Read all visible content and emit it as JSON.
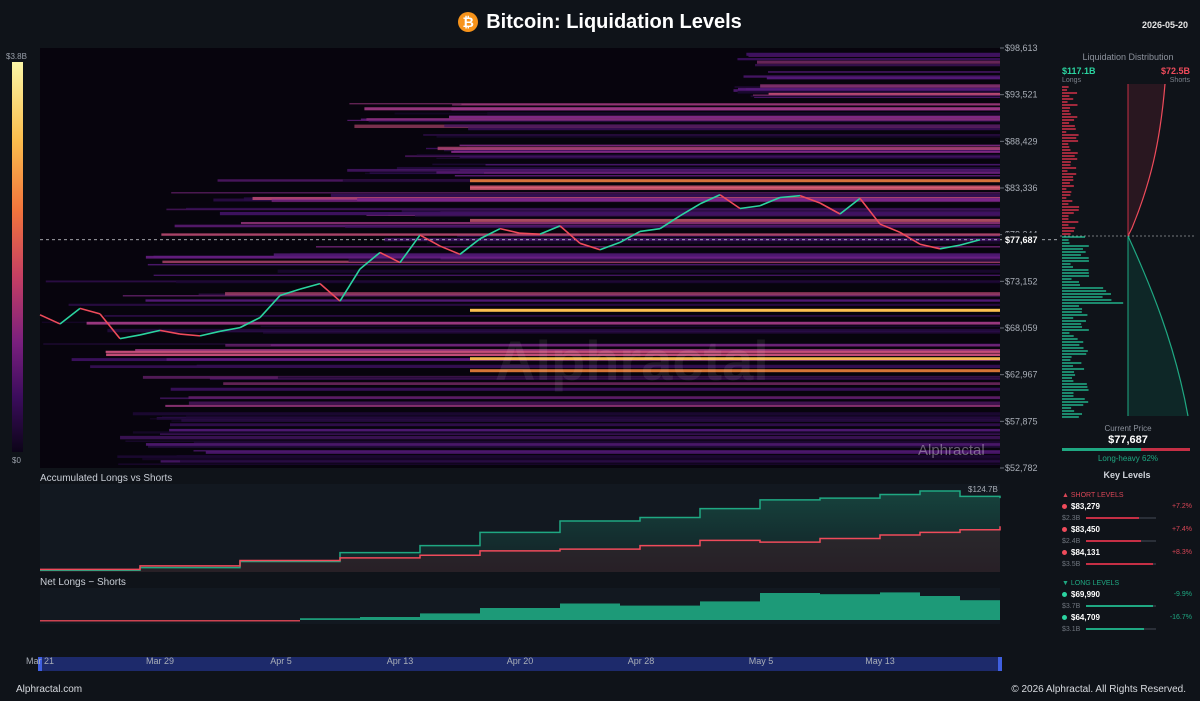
{
  "header": {
    "title": "Bitcoin: Liquidation Levels",
    "date": "2026-05-20",
    "icon": "bitcoin-icon"
  },
  "footer": {
    "left": "Alphractal.com",
    "right": "© 2026 Alphractal. All Rights Reserved."
  },
  "watermark": {
    "big": "Alphractal",
    "small": "Alphractal"
  },
  "colorbar": {
    "max_label": "$3.8B",
    "min_label": "$0"
  },
  "panels": {
    "accumulated_title": "Accumulated Longs vs Shorts",
    "net_title": "Net Longs − Shorts",
    "accumulated_value_label": "$124.7B"
  },
  "colors": {
    "long": "#1fa882",
    "short": "#ef4b5b",
    "background": "#0f1319"
  },
  "sidebar": {
    "title": "Liquidation Distribution",
    "longs_value": "$117.1B",
    "longs_label": "Longs",
    "shorts_value": "$72.5B",
    "shorts_label": "Shorts",
    "current_price_label": "Current Price",
    "current_price": "$77,687",
    "bias_label": "Long-heavy 62%",
    "long_fraction": 0.62
  },
  "key_levels": {
    "title": "Key Levels",
    "short_header": "▲ SHORT LEVELS",
    "long_header": "▼ LONG LEVELS",
    "short": [
      {
        "price": "$83,279",
        "pct": "+7.2%",
        "amount": "$2.3B",
        "strength": 0.75
      },
      {
        "price": "$83,450",
        "pct": "+7.4%",
        "amount": "$2.4B",
        "strength": 0.78
      },
      {
        "price": "$84,131",
        "pct": "+8.3%",
        "amount": "$3.5B",
        "strength": 0.95
      }
    ],
    "long": [
      {
        "price": "$69,990",
        "pct": "-9.9%",
        "amount": "$3.7B",
        "strength": 0.95
      },
      {
        "price": "$64,709",
        "pct": "-16.7%",
        "amount": "$3.1B",
        "strength": 0.82
      }
    ]
  },
  "chart_data": {
    "type": "heatmap",
    "title": "Bitcoin: Liquidation Levels",
    "y_ticks": [
      "$98,613",
      "$93,521",
      "$88,429",
      "$83,336",
      "$78,244",
      "$73,152",
      "$68,059",
      "$62,967",
      "$57,875",
      "$52,782"
    ],
    "ylim": [
      52782,
      98613
    ],
    "x_ticks": [
      "Mar 21",
      "Mar 29",
      "Apr 5",
      "Apr 13",
      "Apr 20",
      "Apr 28",
      "May 5",
      "May 13"
    ],
    "current_price": 77687,
    "current_price_label": "$77,687",
    "bright_bands": [
      {
        "price": 69990,
        "intensity": 1.0
      },
      {
        "price": 64709,
        "intensity": 0.9
      },
      {
        "price": 63400,
        "intensity": 0.75
      },
      {
        "price": 84131,
        "intensity": 0.7
      },
      {
        "price": 83450,
        "intensity": 0.6
      },
      {
        "price": 83279,
        "intensity": 0.55
      },
      {
        "price": 79800,
        "intensity": 0.5
      }
    ],
    "price_series": [
      {
        "x": 0,
        "y": 69500
      },
      {
        "x": 2,
        "y": 68500
      },
      {
        "x": 4,
        "y": 70200
      },
      {
        "x": 6,
        "y": 69600
      },
      {
        "x": 8,
        "y": 66900
      },
      {
        "x": 10,
        "y": 67300
      },
      {
        "x": 12,
        "y": 67800
      },
      {
        "x": 14,
        "y": 67400
      },
      {
        "x": 16,
        "y": 67200
      },
      {
        "x": 18,
        "y": 67700
      },
      {
        "x": 20,
        "y": 68100
      },
      {
        "x": 22,
        "y": 69200
      },
      {
        "x": 24,
        "y": 71600
      },
      {
        "x": 26,
        "y": 72300
      },
      {
        "x": 28,
        "y": 72900
      },
      {
        "x": 30,
        "y": 71000
      },
      {
        "x": 32,
        "y": 74500
      },
      {
        "x": 34,
        "y": 76300
      },
      {
        "x": 36,
        "y": 75200
      },
      {
        "x": 38,
        "y": 78200
      },
      {
        "x": 40,
        "y": 77000
      },
      {
        "x": 42,
        "y": 76100
      },
      {
        "x": 44,
        "y": 77800
      },
      {
        "x": 46,
        "y": 78900
      },
      {
        "x": 48,
        "y": 78400
      },
      {
        "x": 50,
        "y": 78300
      },
      {
        "x": 52,
        "y": 79200
      },
      {
        "x": 54,
        "y": 77300
      },
      {
        "x": 56,
        "y": 76600
      },
      {
        "x": 58,
        "y": 77400
      },
      {
        "x": 60,
        "y": 78600
      },
      {
        "x": 62,
        "y": 78900
      },
      {
        "x": 64,
        "y": 80300
      },
      {
        "x": 66,
        "y": 81600
      },
      {
        "x": 68,
        "y": 82600
      },
      {
        "x": 70,
        "y": 81100
      },
      {
        "x": 72,
        "y": 81400
      },
      {
        "x": 74,
        "y": 82300
      },
      {
        "x": 76,
        "y": 82500
      },
      {
        "x": 78,
        "y": 81700
      },
      {
        "x": 80,
        "y": 80500
      },
      {
        "x": 82,
        "y": 82200
      },
      {
        "x": 84,
        "y": 79400
      },
      {
        "x": 86,
        "y": 78500
      },
      {
        "x": 88,
        "y": 77200
      },
      {
        "x": 90,
        "y": 76700
      },
      {
        "x": 92,
        "y": 77100
      },
      {
        "x": 94,
        "y": 77687
      }
    ],
    "accumulated_longs": [
      {
        "x": 0,
        "y": 0.02
      },
      {
        "x": 10,
        "y": 0.05
      },
      {
        "x": 20,
        "y": 0.12
      },
      {
        "x": 30,
        "y": 0.22
      },
      {
        "x": 38,
        "y": 0.3
      },
      {
        "x": 44,
        "y": 0.45
      },
      {
        "x": 52,
        "y": 0.58
      },
      {
        "x": 60,
        "y": 0.62
      },
      {
        "x": 66,
        "y": 0.72
      },
      {
        "x": 72,
        "y": 0.82
      },
      {
        "x": 78,
        "y": 0.84
      },
      {
        "x": 84,
        "y": 0.88
      },
      {
        "x": 88,
        "y": 0.92
      },
      {
        "x": 92,
        "y": 0.86
      },
      {
        "x": 96,
        "y": 0.84
      }
    ],
    "accumulated_shorts": [
      {
        "x": 0,
        "y": 0.03
      },
      {
        "x": 10,
        "y": 0.07
      },
      {
        "x": 20,
        "y": 0.13
      },
      {
        "x": 30,
        "y": 0.16
      },
      {
        "x": 38,
        "y": 0.19
      },
      {
        "x": 44,
        "y": 0.24
      },
      {
        "x": 52,
        "y": 0.26
      },
      {
        "x": 60,
        "y": 0.3
      },
      {
        "x": 66,
        "y": 0.36
      },
      {
        "x": 72,
        "y": 0.34
      },
      {
        "x": 78,
        "y": 0.38
      },
      {
        "x": 84,
        "y": 0.42
      },
      {
        "x": 88,
        "y": 0.45
      },
      {
        "x": 92,
        "y": 0.48
      },
      {
        "x": 96,
        "y": 0.52
      }
    ],
    "net": [
      {
        "x": 0,
        "y": -0.02
      },
      {
        "x": 10,
        "y": -0.04
      },
      {
        "x": 20,
        "y": -0.03
      },
      {
        "x": 26,
        "y": 0.06
      },
      {
        "x": 32,
        "y": 0.1
      },
      {
        "x": 38,
        "y": 0.22
      },
      {
        "x": 44,
        "y": 0.4
      },
      {
        "x": 52,
        "y": 0.55
      },
      {
        "x": 58,
        "y": 0.48
      },
      {
        "x": 66,
        "y": 0.62
      },
      {
        "x": 72,
        "y": 0.9
      },
      {
        "x": 78,
        "y": 0.86
      },
      {
        "x": 84,
        "y": 0.92
      },
      {
        "x": 88,
        "y": 0.8
      },
      {
        "x": 92,
        "y": 0.66
      },
      {
        "x": 96,
        "y": 0.6
      }
    ]
  }
}
